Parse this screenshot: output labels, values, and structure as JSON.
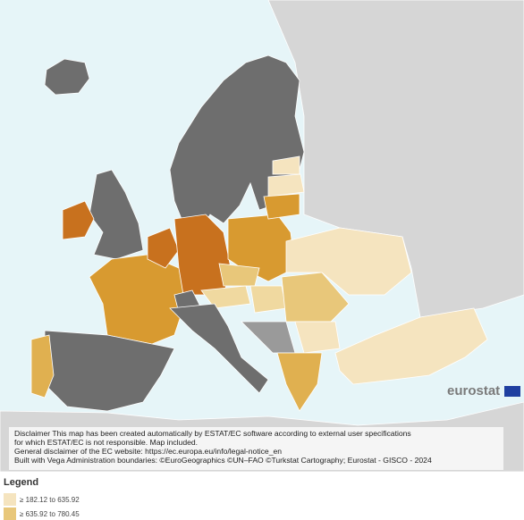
{
  "map": {
    "disclaimer": [
      "Disclaimer This map has been created automatically by ESTAT/EC software according to external user specifications",
      "for which ESTAT/EC is not responsible. Map included.",
      "General disclaimer of the EC website: https://ec.europa.eu/info/legal-notice_en",
      "Built with Vega Administration boundaries: ©EuroGeographics ©UN–FAO ©Turkstat Cartography; Eurostat - GISCO - 2024"
    ],
    "logo": "eurostat"
  },
  "legend": {
    "title": "Legend",
    "items": [
      {
        "label": "≥ 182.12 to 635.92",
        "color": "#f5e4bf"
      },
      {
        "label": "≥ 635.92 to 780.45",
        "color": "#e8c77a"
      }
    ]
  }
}
